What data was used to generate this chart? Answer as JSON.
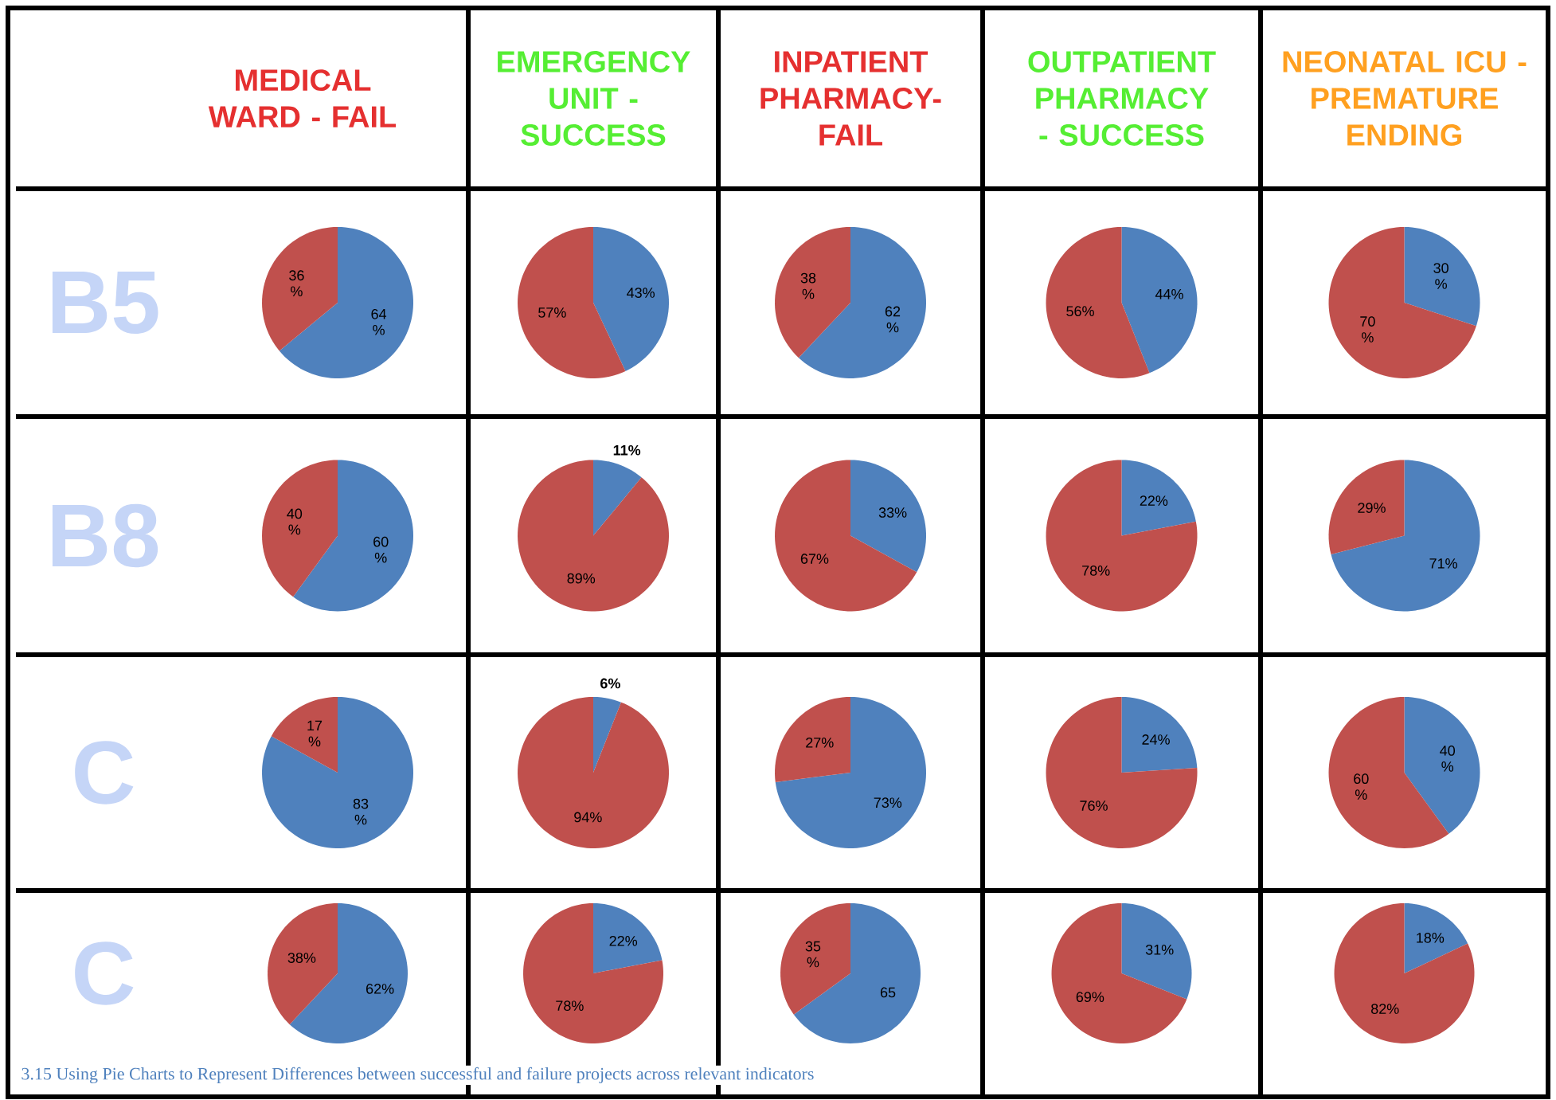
{
  "chart_data": [
    {
      "type": "pie",
      "title": "MEDICAL WARD - FAIL",
      "ylabel": "B5",
      "categories": [
        null,
        null
      ],
      "values": [
        64,
        36
      ],
      "colors": [
        "#4f81bd",
        "#c0504d"
      ],
      "value_labels": [
        "64 %",
        "36 %"
      ],
      "annotations": [
        "3.15 Using Pie Charts to Represent Differences between successful and failure projects across relevant indicators"
      ]
    },
    {
      "type": "pie",
      "title": "EMERGENCY UNIT - SUCCESS",
      "categories": [
        null,
        null
      ],
      "values": [
        43,
        57
      ],
      "colors": [
        "#4f81bd",
        "#c0504d"
      ],
      "value_labels": [
        "43%",
        "57%"
      ]
    },
    {
      "type": "pie",
      "title": "INPATIENT PHARMACY- FAIL",
      "categories": [
        null,
        null
      ],
      "values": [
        62,
        38
      ],
      "colors": [
        "#4f81bd",
        "#c0504d"
      ],
      "value_labels": [
        "62 %",
        "38 %"
      ]
    },
    {
      "type": "pie",
      "title": "OUTPATIENT PHARMACY - SUCCESS",
      "categories": [
        null,
        null
      ],
      "values": [
        44,
        56
      ],
      "colors": [
        "#4f81bd",
        "#c0504d"
      ],
      "value_labels": [
        "44%",
        "56%"
      ]
    },
    {
      "type": "pie",
      "title": "NEONATAL ICU - PREMATURE ENDING",
      "categories": [
        null,
        null
      ],
      "values": [
        30,
        70
      ],
      "colors": [
        "#4f81bd",
        "#c0504d"
      ],
      "value_labels": [
        "30 %",
        "70 %"
      ]
    },
    {
      "type": "pie",
      "ylabel": "B8",
      "categories": [
        null,
        null
      ],
      "values": [
        60,
        40
      ],
      "colors": [
        "#4f81bd",
        "#c0504d"
      ],
      "value_labels": [
        "60 %",
        "40 %"
      ]
    },
    {
      "type": "pie",
      "categories": [
        null,
        null
      ],
      "values": [
        11,
        89
      ],
      "colors": [
        "#4f81bd",
        "#c0504d"
      ],
      "value_labels": [
        "11%",
        "89%"
      ]
    },
    {
      "type": "pie",
      "categories": [
        null,
        null
      ],
      "values": [
        33,
        67
      ],
      "colors": [
        "#4f81bd",
        "#c0504d"
      ],
      "value_labels": [
        "33%",
        "67%"
      ]
    },
    {
      "type": "pie",
      "categories": [
        null,
        null
      ],
      "values": [
        22,
        78
      ],
      "colors": [
        "#4f81bd",
        "#c0504d"
      ],
      "value_labels": [
        "22%",
        "78%"
      ]
    },
    {
      "type": "pie",
      "categories": [
        null,
        null
      ],
      "values": [
        71,
        29
      ],
      "colors": [
        "#4f81bd",
        "#c0504d"
      ],
      "value_labels": [
        "71%",
        "29%"
      ]
    },
    {
      "type": "pie",
      "ylabel": "C",
      "categories": [
        null,
        null
      ],
      "values": [
        83,
        17
      ],
      "colors": [
        "#4f81bd",
        "#c0504d"
      ],
      "value_labels": [
        "83 %",
        "17 %"
      ]
    },
    {
      "type": "pie",
      "categories": [
        null,
        null
      ],
      "values": [
        6,
        94
      ],
      "colors": [
        "#4f81bd",
        "#c0504d"
      ],
      "value_labels": [
        "6%",
        "94%"
      ]
    },
    {
      "type": "pie",
      "categories": [
        null,
        null
      ],
      "values": [
        73,
        27
      ],
      "colors": [
        "#4f81bd",
        "#c0504d"
      ],
      "value_labels": [
        "73%",
        "27%"
      ]
    },
    {
      "type": "pie",
      "categories": [
        null,
        null
      ],
      "values": [
        24,
        76
      ],
      "colors": [
        "#4f81bd",
        "#c0504d"
      ],
      "value_labels": [
        "24%",
        "76%"
      ]
    },
    {
      "type": "pie",
      "categories": [
        null,
        null
      ],
      "values": [
        40,
        60
      ],
      "colors": [
        "#4f81bd",
        "#c0504d"
      ],
      "value_labels": [
        "40 %",
        "60 %"
      ]
    },
    {
      "type": "pie",
      "ylabel": "C",
      "categories": [
        null,
        null
      ],
      "values": [
        62,
        38
      ],
      "colors": [
        "#4f81bd",
        "#c0504d"
      ],
      "value_labels": [
        "62%",
        "38%"
      ]
    },
    {
      "type": "pie",
      "categories": [
        null,
        null
      ],
      "values": [
        22,
        78
      ],
      "colors": [
        "#4f81bd",
        "#c0504d"
      ],
      "value_labels": [
        "22%",
        "78%"
      ]
    },
    {
      "type": "pie",
      "categories": [
        null,
        null
      ],
      "values": [
        65,
        35
      ],
      "colors": [
        "#4f81bd",
        "#c0504d"
      ],
      "value_labels": [
        "65",
        "35 %"
      ]
    },
    {
      "type": "pie",
      "categories": [
        null,
        null
      ],
      "values": [
        31,
        69
      ],
      "colors": [
        "#4f81bd",
        "#c0504d"
      ],
      "value_labels": [
        "31%",
        "69%"
      ]
    },
    {
      "type": "pie",
      "categories": [
        null,
        null
      ],
      "values": [
        18,
        82
      ],
      "colors": [
        "#4f81bd",
        "#c0504d"
      ],
      "value_labels": [
        "18%",
        "82%"
      ]
    }
  ]
}
